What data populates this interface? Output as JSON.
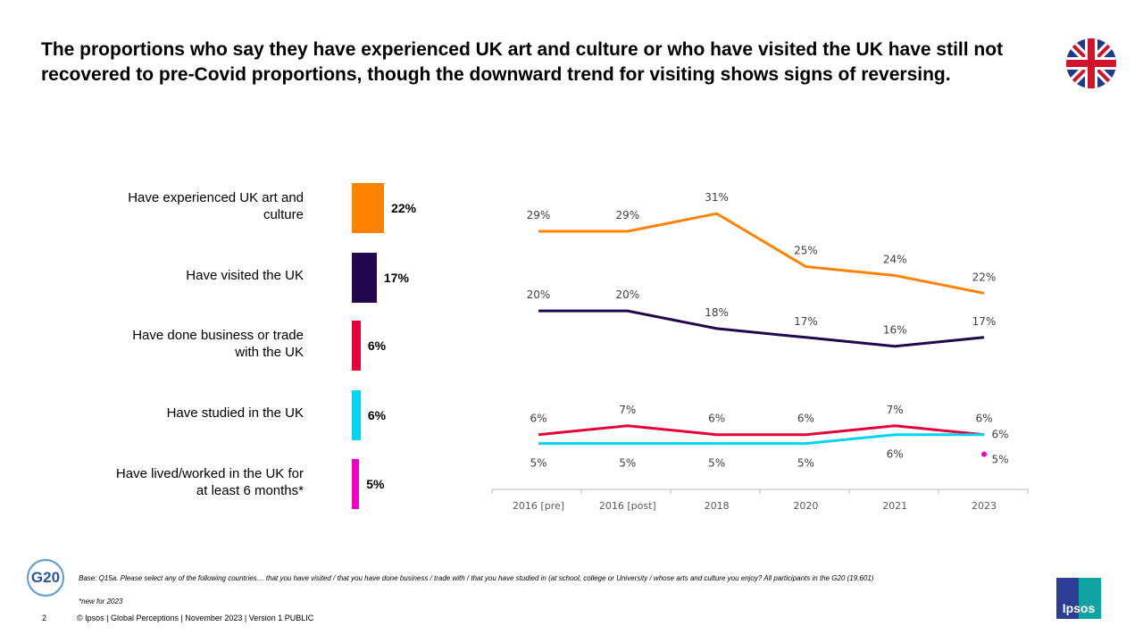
{
  "title": "The proportions who say they have experienced UK art and culture or who have visited the UK have still not recovered to pre-Covid proportions, though the downward trend for visiting shows signs of reversing.",
  "chart_data": [
    {
      "type": "bar",
      "orientation": "horizontal",
      "categories": [
        "Have experienced UK art and culture",
        "Have visited the UK",
        "Have done business or trade with the UK",
        "Have studied in the UK",
        "Have lived/worked in the UK for at least 6 months*"
      ],
      "values": [
        22,
        17,
        6,
        6,
        5
      ],
      "labels": [
        "22%",
        "17%",
        "6%",
        "6%",
        "5%"
      ],
      "colors": [
        "#FF8200",
        "#22064E",
        "#E4003B",
        "#00D4F0",
        "#F000C0"
      ]
    },
    {
      "type": "line",
      "categories": [
        "2016 [pre]",
        "2016 [post]",
        "2018",
        "2020",
        "2021",
        "2023"
      ],
      "ylim": [
        0,
        35
      ],
      "grid": false,
      "series": [
        {
          "values": [
            29,
            29,
            31,
            25,
            24,
            22
          ],
          "color": "#FF8200",
          "label_pos": "above"
        },
        {
          "values": [
            20,
            20,
            18,
            17,
            16,
            17
          ],
          "color": "#22064E",
          "label_pos": "above"
        },
        {
          "values": [
            6,
            7,
            6,
            6,
            7,
            6
          ],
          "color": "#E4003B",
          "label_pos": "above"
        },
        {
          "values": [
            5,
            5,
            5,
            5,
            6,
            6
          ],
          "color": "#00D4F0",
          "label_pos": "below"
        },
        {
          "values": [
            null,
            null,
            null,
            null,
            null,
            5
          ],
          "color": "#F000C0",
          "label_pos": "right"
        }
      ]
    }
  ],
  "footer": {
    "base": "Base: Q15a. Please select any of the following countries… that you have visited / that you have done business / trade with / that you have studied in (at school, college or University / whose arts and culture you enjoy? All participants in the G20 (19,601)",
    "note": "*new for 2023",
    "page": "2",
    "copyright": "© Ipsos | Global Perceptions | November 2023 | Version 1  PUBLIC",
    "g20_logo": "G20",
    "ipsos_logo": "Ipsos"
  }
}
